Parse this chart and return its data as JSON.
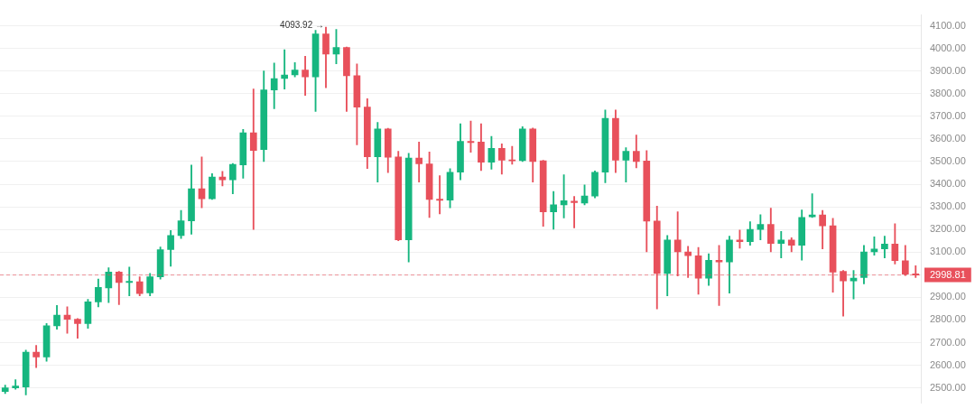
{
  "chart_data": {
    "type": "candlestick",
    "categories": [
      null,
      null,
      null,
      null,
      null,
      null,
      null,
      null,
      null,
      null,
      null,
      null,
      null,
      null,
      null,
      null,
      null,
      null,
      null,
      null,
      null,
      null,
      null,
      null,
      null,
      null,
      null,
      null,
      null,
      null,
      null,
      null,
      null,
      null,
      null,
      null,
      null,
      null,
      null,
      null,
      null,
      null,
      null,
      null,
      null,
      null,
      null,
      null,
      null,
      null,
      null,
      null,
      null,
      null,
      null,
      null,
      null,
      null,
      null,
      null,
      null,
      null,
      null,
      null,
      null,
      null,
      null,
      null,
      null,
      null,
      null,
      null,
      null,
      null,
      null,
      null,
      null,
      null,
      null,
      null,
      null,
      null,
      null,
      null,
      null,
      null,
      null,
      null,
      null
    ],
    "ohlc": [
      [
        2484,
        2512,
        2475,
        2500
      ],
      [
        2500,
        2536,
        2494,
        2508
      ],
      [
        2504,
        2667,
        2469,
        2658
      ],
      [
        2658,
        2688,
        2590,
        2636
      ],
      [
        2636,
        2784,
        2617,
        2774
      ],
      [
        2774,
        2864,
        2759,
        2821
      ],
      [
        2821,
        2858,
        2741,
        2803
      ],
      [
        2803,
        2806,
        2719,
        2784
      ],
      [
        2784,
        2891,
        2763,
        2880
      ],
      [
        2880,
        2981,
        2858,
        2944
      ],
      [
        2942,
        3031,
        2877,
        3012
      ],
      [
        3012,
        3015,
        2868,
        2966
      ],
      [
        2966,
        3034,
        2907,
        2970
      ],
      [
        2969,
        2991,
        2907,
        2917
      ],
      [
        2920,
        3006,
        2907,
        2991
      ],
      [
        2991,
        3123,
        2981,
        3111
      ],
      [
        3111,
        3195,
        3037,
        3173
      ],
      [
        3173,
        3284,
        3160,
        3238
      ],
      [
        3238,
        3485,
        3179,
        3380
      ],
      [
        3380,
        3521,
        3296,
        3336
      ],
      [
        3336,
        3447,
        3333,
        3432
      ],
      [
        3432,
        3457,
        3393,
        3420
      ],
      [
        3420,
        3492,
        3358,
        3488
      ],
      [
        3485,
        3642,
        3426,
        3627
      ],
      [
        3627,
        3821,
        3200,
        3549
      ],
      [
        3553,
        3901,
        3500,
        3817
      ],
      [
        3817,
        3936,
        3734,
        3867
      ],
      [
        3867,
        3994,
        3821,
        3883
      ],
      [
        3883,
        3938,
        3874,
        3905
      ],
      [
        3905,
        3966,
        3793,
        3874
      ],
      [
        3874,
        4080,
        3722,
        4064
      ],
      [
        4064,
        4093.92,
        3827,
        3975
      ],
      [
        3975,
        4084,
        3932,
        4004
      ],
      [
        4004,
        4006,
        3722,
        3879
      ],
      [
        3880,
        3932,
        3574,
        3741
      ],
      [
        3741,
        3778,
        3469,
        3521
      ],
      [
        3521,
        3673,
        3410,
        3644
      ],
      [
        3644,
        3647,
        3451,
        3519
      ],
      [
        3521,
        3546,
        3150,
        3154
      ],
      [
        3154,
        3537,
        3056,
        3516
      ],
      [
        3516,
        3586,
        3410,
        3490
      ],
      [
        3490,
        3543,
        3253,
        3333
      ],
      [
        3333,
        3438,
        3269,
        3329
      ],
      [
        3330,
        3469,
        3296,
        3453
      ],
      [
        3453,
        3667,
        3420,
        3589
      ],
      [
        3589,
        3679,
        3541,
        3584
      ],
      [
        3586,
        3667,
        3460,
        3497
      ],
      [
        3497,
        3611,
        3466,
        3559
      ],
      [
        3559,
        3578,
        3444,
        3506
      ],
      [
        3507,
        3568,
        3488,
        3503
      ],
      [
        3504,
        3654,
        3500,
        3644
      ],
      [
        3644,
        3648,
        3410,
        3500
      ],
      [
        3504,
        3506,
        3214,
        3278
      ],
      [
        3278,
        3368,
        3201,
        3309
      ],
      [
        3309,
        3442,
        3251,
        3327
      ],
      [
        3325,
        3346,
        3207,
        3319
      ],
      [
        3317,
        3397,
        3309,
        3348
      ],
      [
        3348,
        3459,
        3340,
        3453
      ],
      [
        3453,
        3728,
        3407,
        3691
      ],
      [
        3691,
        3728,
        3451,
        3506
      ],
      [
        3506,
        3562,
        3410,
        3546
      ],
      [
        3546,
        3617,
        3472,
        3500
      ],
      [
        3503,
        3549,
        3101,
        3237
      ],
      [
        3237,
        3303,
        2849,
        3006
      ],
      [
        3006,
        3173,
        2907,
        3154
      ],
      [
        3154,
        3278,
        2995,
        3101
      ],
      [
        3101,
        3126,
        2988,
        3084
      ],
      [
        3084,
        3121,
        2914,
        2985
      ],
      [
        2985,
        3093,
        2953,
        3064
      ],
      [
        3064,
        3130,
        2864,
        3056
      ],
      [
        3056,
        3170,
        2919,
        3154
      ],
      [
        3154,
        3197,
        3117,
        3146
      ],
      [
        3146,
        3234,
        3130,
        3200
      ],
      [
        3200,
        3265,
        3154,
        3222
      ],
      [
        3222,
        3294,
        3101,
        3138
      ],
      [
        3138,
        3191,
        3074,
        3154
      ],
      [
        3154,
        3163,
        3101,
        3130
      ],
      [
        3130,
        3286,
        3064,
        3253
      ],
      [
        3256,
        3358,
        3253,
        3264
      ],
      [
        3264,
        3284,
        3114,
        3216
      ],
      [
        3216,
        3249,
        2923,
        3012
      ],
      [
        3015,
        3019,
        2817,
        2973
      ],
      [
        2973,
        3019,
        2893,
        2985
      ],
      [
        2988,
        3130,
        2960,
        3101
      ],
      [
        3101,
        3167,
        3086,
        3114
      ],
      [
        3114,
        3170,
        3074,
        3136
      ],
      [
        3136,
        3225,
        3047,
        3062
      ],
      [
        3062,
        3130,
        2997,
        3003
      ],
      [
        3003,
        3040,
        2988,
        2998.81
      ]
    ],
    "colors": [
      "#16b67f",
      "#16b67f",
      "#16b67f",
      "#e8505b",
      "#16b67f",
      "#16b67f",
      "#e8505b",
      "#e8505b",
      "#16b67f",
      "#16b67f",
      "#16b67f",
      "#e8505b",
      "#16b67f",
      "#e8505b",
      "#16b67f",
      "#16b67f",
      "#16b67f",
      "#16b67f",
      "#16b67f",
      "#e8505b",
      "#16b67f",
      "#e8505b",
      "#16b67f",
      "#16b67f",
      "#e8505b",
      "#16b67f",
      "#16b67f",
      "#16b67f",
      "#16b67f",
      "#e8505b",
      "#16b67f",
      "#e8505b",
      "#16b67f",
      "#e8505b",
      "#e8505b",
      "#e8505b",
      "#16b67f",
      "#e8505b",
      "#e8505b",
      "#16b67f",
      "#e8505b",
      "#e8505b",
      "#e8505b",
      "#16b67f",
      "#16b67f",
      "#e8505b",
      "#e8505b",
      "#16b67f",
      "#e8505b",
      "#e8505b",
      "#16b67f",
      "#e8505b",
      "#e8505b",
      "#16b67f",
      "#16b67f",
      "#e8505b",
      "#16b67f",
      "#16b67f",
      "#16b67f",
      "#e8505b",
      "#16b67f",
      "#e8505b",
      "#e8505b",
      "#e8505b",
      "#16b67f",
      "#e8505b",
      "#e8505b",
      "#e8505b",
      "#16b67f",
      "#e8505b",
      "#16b67f",
      "#e8505b",
      "#16b67f",
      "#16b67f",
      "#e8505b",
      "#16b67f",
      "#e8505b",
      "#16b67f",
      "#16b67f",
      "#e8505b",
      "#e8505b",
      "#e8505b",
      "#16b67f",
      "#16b67f",
      "#16b67f",
      "#16b67f",
      "#e8505b",
      "#e8505b",
      "#e8505b"
    ],
    "ylim": [
      2433,
      4148
    ],
    "yticks": [
      {
        "value": 2500,
        "label": "2500.00"
      },
      {
        "value": 2600,
        "label": "2600.00"
      },
      {
        "value": 2700,
        "label": "2700.00"
      },
      {
        "value": 2800,
        "label": "2800.00"
      },
      {
        "value": 2900,
        "label": "2900.00"
      },
      {
        "value": 3000,
        "label": null
      },
      {
        "value": 3100,
        "label": "3100.00"
      },
      {
        "value": 3200,
        "label": "3200.00"
      },
      {
        "value": 3300,
        "label": "3300.00"
      },
      {
        "value": 3400,
        "label": "3400.00"
      },
      {
        "value": 3500,
        "label": "3500.00"
      },
      {
        "value": 3600,
        "label": "3600.00"
      },
      {
        "value": 3700,
        "label": "3700.00"
      },
      {
        "value": 3800,
        "label": "3800.00"
      },
      {
        "value": 3900,
        "label": "3900.00"
      },
      {
        "value": 4000,
        "label": "4000.00"
      },
      {
        "value": 4100,
        "label": "4100.00"
      }
    ],
    "ref_lines": [
      {
        "axis": "y",
        "value": 2998.81,
        "label": "2998.81",
        "color": "#e8505b",
        "line_style": "dashed"
      }
    ],
    "annotations": [
      "4093.92 →"
    ],
    "grid": "y",
    "tick_labels": "y"
  }
}
